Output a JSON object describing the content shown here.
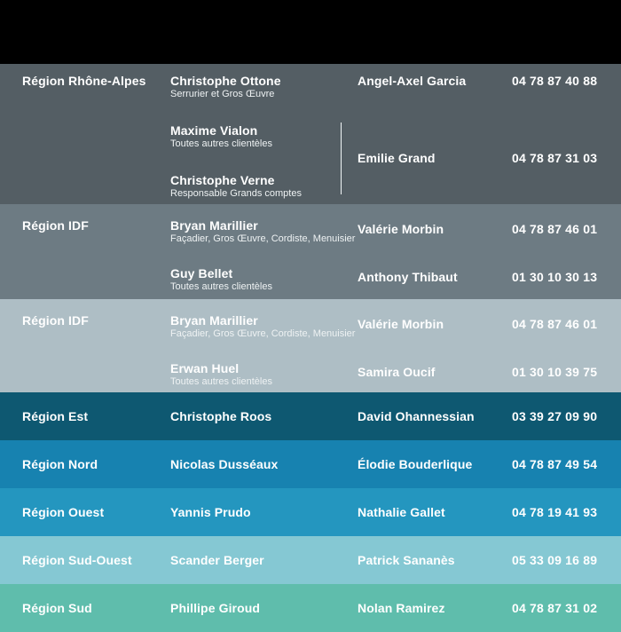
{
  "header": {
    "bg": "#000000"
  },
  "text_color": "#ffffff",
  "rows": [
    {
      "region": "Région Rhône-Alpes",
      "bg": "#545e64",
      "people": [
        {
          "name": "Christophe Ottone",
          "role": "Serrurier et Gros Œuvre"
        },
        {
          "name": "Maxime Vialon",
          "role": "Toutes autres clientèles"
        },
        {
          "name": "Christophe Verne",
          "role": "Responsable Grands comptes"
        }
      ],
      "contacts": [
        {
          "name": "Angel-Axel Garcia",
          "phone": "04 78 87 40 88"
        },
        {
          "name": "Emilie Grand",
          "phone": "04 78 87 31 03"
        }
      ]
    },
    {
      "region": "Région IDF",
      "bg": "#6d7b83",
      "people": [
        {
          "name": "Bryan Marillier",
          "role": "Façadier, Gros Œuvre, Cordiste, Menuisier"
        },
        {
          "name": "Guy Bellet",
          "role": "Toutes autres clientèles"
        }
      ],
      "contacts": [
        {
          "name": "Valérie Morbin",
          "phone": "04 78 87 46 01"
        },
        {
          "name": "Anthony Thibaut",
          "phone": "01 30 10 30 13"
        }
      ]
    },
    {
      "region": "Région IDF",
      "bg": "#aebec5",
      "people": [
        {
          "name": "Bryan Marillier",
          "role": "Façadier, Gros Œuvre, Cordiste, Menuisier"
        },
        {
          "name": "Erwan Huel",
          "role": "Toutes autres clientèles"
        }
      ],
      "contacts": [
        {
          "name": "Valérie Morbin",
          "phone": "04 78 87 46 01"
        },
        {
          "name": "Samira Oucif",
          "phone": "01 30 10 39 75"
        }
      ]
    },
    {
      "region": "Région Est",
      "bg": "#0e5871",
      "people": [
        {
          "name": "Christophe Roos"
        }
      ],
      "contacts": [
        {
          "name": "David Ohannessian",
          "phone": "03 39 27 09 90"
        }
      ]
    },
    {
      "region": "Région Nord",
      "bg": "#1782b0",
      "people": [
        {
          "name": "Nicolas Dusséaux"
        }
      ],
      "contacts": [
        {
          "name": "Élodie Bouderlique",
          "phone": "04 78 87 49 54"
        }
      ]
    },
    {
      "region": "Région Ouest",
      "bg": "#2496bf",
      "people": [
        {
          "name": "Yannis Prudo"
        }
      ],
      "contacts": [
        {
          "name": "Nathalie Gallet",
          "phone": "04 78 19 41 93"
        }
      ]
    },
    {
      "region": "Région Sud-Ouest",
      "bg": "#85c8d3",
      "people": [
        {
          "name": "Scander Berger"
        }
      ],
      "contacts": [
        {
          "name": "Patrick Sananès",
          "phone": "05 33 09 16 89"
        }
      ]
    },
    {
      "region": "Région Sud",
      "bg": "#5fbdac",
      "people": [
        {
          "name": "Phillipe Giroud"
        }
      ],
      "contacts": [
        {
          "name": "Nolan Ramirez",
          "phone": "04 78 87 31 02"
        }
      ]
    }
  ]
}
